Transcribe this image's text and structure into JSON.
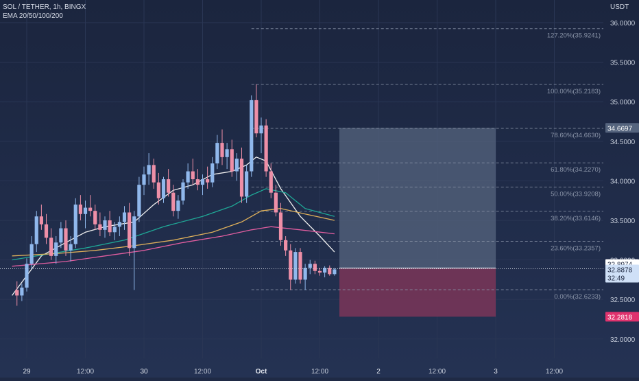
{
  "chart_data": {
    "type": "candlestick",
    "symbol_title": "SOL / TETHER, 1h, BINGX",
    "indicator_label": "EMA 20/50/100/200",
    "currency_label": "USDT",
    "ylim": [
      31.9,
      36.1
    ],
    "y_ticks": [
      "36.0000",
      "35.5000",
      "35.0000",
      "34.5000",
      "34.0000",
      "33.5000",
      "33.0000",
      "32.5000",
      "32.0000"
    ],
    "y_tick_values": [
      36.0,
      35.5,
      35.0,
      34.5,
      34.0,
      33.5,
      33.0,
      32.5,
      32.0
    ],
    "x_ticks": [
      "29",
      "12:00",
      "30",
      "12:00",
      "Oct",
      "12:00",
      "2",
      "12:00",
      "3",
      "12:00"
    ],
    "x_tick_hours": [
      0,
      12,
      24,
      36,
      48,
      60,
      72,
      84,
      96,
      108
    ],
    "candles": [
      {
        "t": -2,
        "o": 32.62,
        "h": 32.73,
        "l": 32.42,
        "c": 32.55
      },
      {
        "t": -1,
        "o": 32.55,
        "h": 32.7,
        "l": 32.48,
        "c": 32.65
      },
      {
        "t": 0,
        "o": 32.65,
        "h": 33.02,
        "l": 32.6,
        "c": 32.95
      },
      {
        "t": 1,
        "o": 32.95,
        "h": 33.3,
        "l": 32.88,
        "c": 33.2
      },
      {
        "t": 2,
        "o": 33.2,
        "h": 33.62,
        "l": 33.1,
        "c": 33.55
      },
      {
        "t": 3,
        "o": 33.55,
        "h": 33.7,
        "l": 33.38,
        "c": 33.45
      },
      {
        "t": 4,
        "o": 33.45,
        "h": 33.58,
        "l": 33.2,
        "c": 33.28
      },
      {
        "t": 5,
        "o": 33.28,
        "h": 33.4,
        "l": 33.0,
        "c": 33.05
      },
      {
        "t": 6,
        "o": 33.05,
        "h": 33.3,
        "l": 32.95,
        "c": 33.22
      },
      {
        "t": 7,
        "o": 33.22,
        "h": 33.48,
        "l": 33.15,
        "c": 33.4
      },
      {
        "t": 8,
        "o": 33.4,
        "h": 33.5,
        "l": 33.05,
        "c": 33.12
      },
      {
        "t": 9,
        "o": 33.12,
        "h": 33.3,
        "l": 32.98,
        "c": 33.2
      },
      {
        "t": 10,
        "o": 33.2,
        "h": 33.78,
        "l": 33.15,
        "c": 33.7
      },
      {
        "t": 11,
        "o": 33.7,
        "h": 33.82,
        "l": 33.5,
        "c": 33.58
      },
      {
        "t": 12,
        "o": 33.58,
        "h": 33.75,
        "l": 33.4,
        "c": 33.66
      },
      {
        "t": 13,
        "o": 33.66,
        "h": 33.82,
        "l": 33.55,
        "c": 33.62
      },
      {
        "t": 14,
        "o": 33.62,
        "h": 33.7,
        "l": 33.38,
        "c": 33.45
      },
      {
        "t": 15,
        "o": 33.45,
        "h": 33.6,
        "l": 33.3,
        "c": 33.38
      },
      {
        "t": 16,
        "o": 33.38,
        "h": 33.55,
        "l": 33.28,
        "c": 33.5
      },
      {
        "t": 17,
        "o": 33.5,
        "h": 33.62,
        "l": 33.3,
        "c": 33.35
      },
      {
        "t": 18,
        "o": 33.35,
        "h": 33.48,
        "l": 33.25,
        "c": 33.42
      },
      {
        "t": 19,
        "o": 33.42,
        "h": 33.55,
        "l": 33.3,
        "c": 33.48
      },
      {
        "t": 20,
        "o": 33.48,
        "h": 33.68,
        "l": 33.38,
        "c": 33.6
      },
      {
        "t": 21,
        "o": 33.6,
        "h": 33.72,
        "l": 33.05,
        "c": 33.15
      },
      {
        "t": 22,
        "o": 33.15,
        "h": 33.62,
        "l": 32.62,
        "c": 33.55
      },
      {
        "t": 23,
        "o": 33.55,
        "h": 34.05,
        "l": 33.48,
        "c": 33.95
      },
      {
        "t": 24,
        "o": 33.95,
        "h": 34.18,
        "l": 33.82,
        "c": 34.08
      },
      {
        "t": 25,
        "o": 34.08,
        "h": 34.35,
        "l": 33.95,
        "c": 34.2
      },
      {
        "t": 26,
        "o": 34.2,
        "h": 34.28,
        "l": 33.9,
        "c": 33.98
      },
      {
        "t": 27,
        "o": 33.98,
        "h": 34.1,
        "l": 33.7,
        "c": 33.78
      },
      {
        "t": 28,
        "o": 33.78,
        "h": 34.05,
        "l": 33.72,
        "c": 34.02
      },
      {
        "t": 29,
        "o": 34.02,
        "h": 34.15,
        "l": 33.8,
        "c": 33.85
      },
      {
        "t": 30,
        "o": 33.85,
        "h": 33.95,
        "l": 33.55,
        "c": 33.62
      },
      {
        "t": 31,
        "o": 33.62,
        "h": 33.82,
        "l": 33.52,
        "c": 33.75
      },
      {
        "t": 32,
        "o": 33.75,
        "h": 34.02,
        "l": 33.7,
        "c": 33.98
      },
      {
        "t": 33,
        "o": 33.98,
        "h": 34.22,
        "l": 33.9,
        "c": 34.12
      },
      {
        "t": 34,
        "o": 34.12,
        "h": 34.28,
        "l": 33.95,
        "c": 34.02
      },
      {
        "t": 35,
        "o": 34.02,
        "h": 34.15,
        "l": 33.88,
        "c": 33.95
      },
      {
        "t": 36,
        "o": 33.95,
        "h": 34.08,
        "l": 33.82,
        "c": 34.02
      },
      {
        "t": 37,
        "o": 34.02,
        "h": 34.18,
        "l": 33.9,
        "c": 33.98
      },
      {
        "t": 38,
        "o": 33.98,
        "h": 34.3,
        "l": 33.92,
        "c": 34.22
      },
      {
        "t": 39,
        "o": 34.22,
        "h": 34.58,
        "l": 34.15,
        "c": 34.48
      },
      {
        "t": 40,
        "o": 34.48,
        "h": 34.65,
        "l": 34.2,
        "c": 34.3
      },
      {
        "t": 41,
        "o": 34.3,
        "h": 34.48,
        "l": 34.15,
        "c": 34.4
      },
      {
        "t": 42,
        "o": 34.4,
        "h": 34.52,
        "l": 34.05,
        "c": 34.12
      },
      {
        "t": 43,
        "o": 34.12,
        "h": 34.35,
        "l": 34.0,
        "c": 34.28
      },
      {
        "t": 44,
        "o": 34.28,
        "h": 34.42,
        "l": 33.72,
        "c": 33.8
      },
      {
        "t": 45,
        "o": 33.8,
        "h": 34.2,
        "l": 33.72,
        "c": 34.12
      },
      {
        "t": 46,
        "o": 34.12,
        "h": 35.08,
        "l": 34.05,
        "c": 35.02
      },
      {
        "t": 47,
        "o": 35.02,
        "h": 35.22,
        "l": 34.55,
        "c": 34.6
      },
      {
        "t": 48,
        "o": 34.6,
        "h": 34.8,
        "l": 34.35,
        "c": 34.7
      },
      {
        "t": 49,
        "o": 34.7,
        "h": 34.78,
        "l": 34.05,
        "c": 34.12
      },
      {
        "t": 50,
        "o": 34.12,
        "h": 34.22,
        "l": 33.78,
        "c": 33.85
      },
      {
        "t": 51,
        "o": 33.85,
        "h": 33.95,
        "l": 33.55,
        "c": 33.6
      },
      {
        "t": 52,
        "o": 33.6,
        "h": 33.72,
        "l": 33.18,
        "c": 33.25
      },
      {
        "t": 53,
        "o": 33.25,
        "h": 33.3,
        "l": 33.05,
        "c": 33.12
      },
      {
        "t": 54,
        "o": 33.12,
        "h": 33.2,
        "l": 32.62,
        "c": 32.75
      },
      {
        "t": 55,
        "o": 32.75,
        "h": 33.15,
        "l": 32.7,
        "c": 33.1
      },
      {
        "t": 56,
        "o": 33.1,
        "h": 33.15,
        "l": 32.7,
        "c": 32.75
      },
      {
        "t": 57,
        "o": 32.75,
        "h": 32.95,
        "l": 32.62,
        "c": 32.9
      },
      {
        "t": 58,
        "o": 32.9,
        "h": 33.0,
        "l": 32.82,
        "c": 32.95
      },
      {
        "t": 59,
        "o": 32.95,
        "h": 32.99,
        "l": 32.82,
        "c": 32.86
      },
      {
        "t": 60,
        "o": 32.86,
        "h": 32.9,
        "l": 32.8,
        "c": 32.84
      },
      {
        "t": 61,
        "o": 32.84,
        "h": 32.92,
        "l": 32.78,
        "c": 32.9
      },
      {
        "t": 62,
        "o": 32.9,
        "h": 32.93,
        "l": 32.8,
        "c": 32.82
      },
      {
        "t": 63,
        "o": 32.82,
        "h": 32.9,
        "l": 32.8,
        "c": 32.88
      }
    ],
    "ema": [
      {
        "name": "EMA 20",
        "color": "#f0f0f0",
        "points": [
          [
            -3,
            32.55
          ],
          [
            3,
            33.05
          ],
          [
            8,
            33.22
          ],
          [
            12,
            33.35
          ],
          [
            16,
            33.42
          ],
          [
            22,
            33.48
          ],
          [
            26,
            33.7
          ],
          [
            30,
            33.88
          ],
          [
            34,
            33.95
          ],
          [
            38,
            34.08
          ],
          [
            42,
            34.12
          ],
          [
            45,
            34.2
          ],
          [
            47,
            34.3
          ],
          [
            49,
            34.25
          ],
          [
            52,
            33.9
          ],
          [
            56,
            33.55
          ],
          [
            60,
            33.3
          ],
          [
            63,
            33.1
          ]
        ]
      },
      {
        "name": "EMA 50",
        "color": "#1fa896",
        "points": [
          [
            -3,
            33.0
          ],
          [
            5,
            33.08
          ],
          [
            12,
            33.15
          ],
          [
            20,
            33.25
          ],
          [
            28,
            33.42
          ],
          [
            36,
            33.55
          ],
          [
            42,
            33.68
          ],
          [
            46,
            33.82
          ],
          [
            49,
            33.9
          ],
          [
            53,
            33.85
          ],
          [
            57,
            33.65
          ],
          [
            63,
            33.55
          ]
        ]
      },
      {
        "name": "EMA 100",
        "color": "#e0b15a",
        "points": [
          [
            -3,
            33.05
          ],
          [
            6,
            33.08
          ],
          [
            14,
            33.12
          ],
          [
            22,
            33.18
          ],
          [
            30,
            33.25
          ],
          [
            38,
            33.35
          ],
          [
            44,
            33.48
          ],
          [
            48,
            33.62
          ],
          [
            52,
            33.65
          ],
          [
            57,
            33.58
          ],
          [
            63,
            33.5
          ]
        ]
      },
      {
        "name": "EMA 200",
        "color": "#e25ea0",
        "points": [
          [
            -3,
            32.92
          ],
          [
            8,
            32.98
          ],
          [
            16,
            33.05
          ],
          [
            24,
            33.12
          ],
          [
            32,
            33.22
          ],
          [
            40,
            33.3
          ],
          [
            46,
            33.38
          ],
          [
            50,
            33.42
          ],
          [
            56,
            33.38
          ],
          [
            63,
            33.33
          ]
        ]
      }
    ],
    "fib_levels": [
      {
        "label": "127.20%(35.9241)",
        "value": 35.9241
      },
      {
        "label": "100.00%(35.2183)",
        "value": 35.2183
      },
      {
        "label": "78.60%(34.6630)",
        "value": 34.663
      },
      {
        "label": "61.80%(34.2270)",
        "value": 34.227
      },
      {
        "label": "50.00%(33.9208)",
        "value": 33.9208
      },
      {
        "label": "38.20%(33.6146)",
        "value": 33.6146
      },
      {
        "label": "23.60%(33.2357)",
        "value": 33.2357
      },
      {
        "label": "0.00%(32.6233)",
        "value": 32.6233
      }
    ],
    "fib_start_hour": 46,
    "position": {
      "entry": 32.8974,
      "target": 34.6697,
      "stop": 32.2818,
      "start_hour": 64,
      "end_hour": 96,
      "target_label": "34.6697",
      "entry_label": "32.8974",
      "stop_label": "32.2818",
      "profit_color": "#55647e",
      "loss_color": "#7a3558"
    },
    "current_price": 32.8878,
    "current_price_label": "32.8878",
    "countdown_label": "32:49",
    "colors": {
      "up": "#90b8ec",
      "down": "#ee8fa7",
      "grid": "#2a3654",
      "text": "#c7cedb",
      "fib": "#8a94a8"
    }
  }
}
